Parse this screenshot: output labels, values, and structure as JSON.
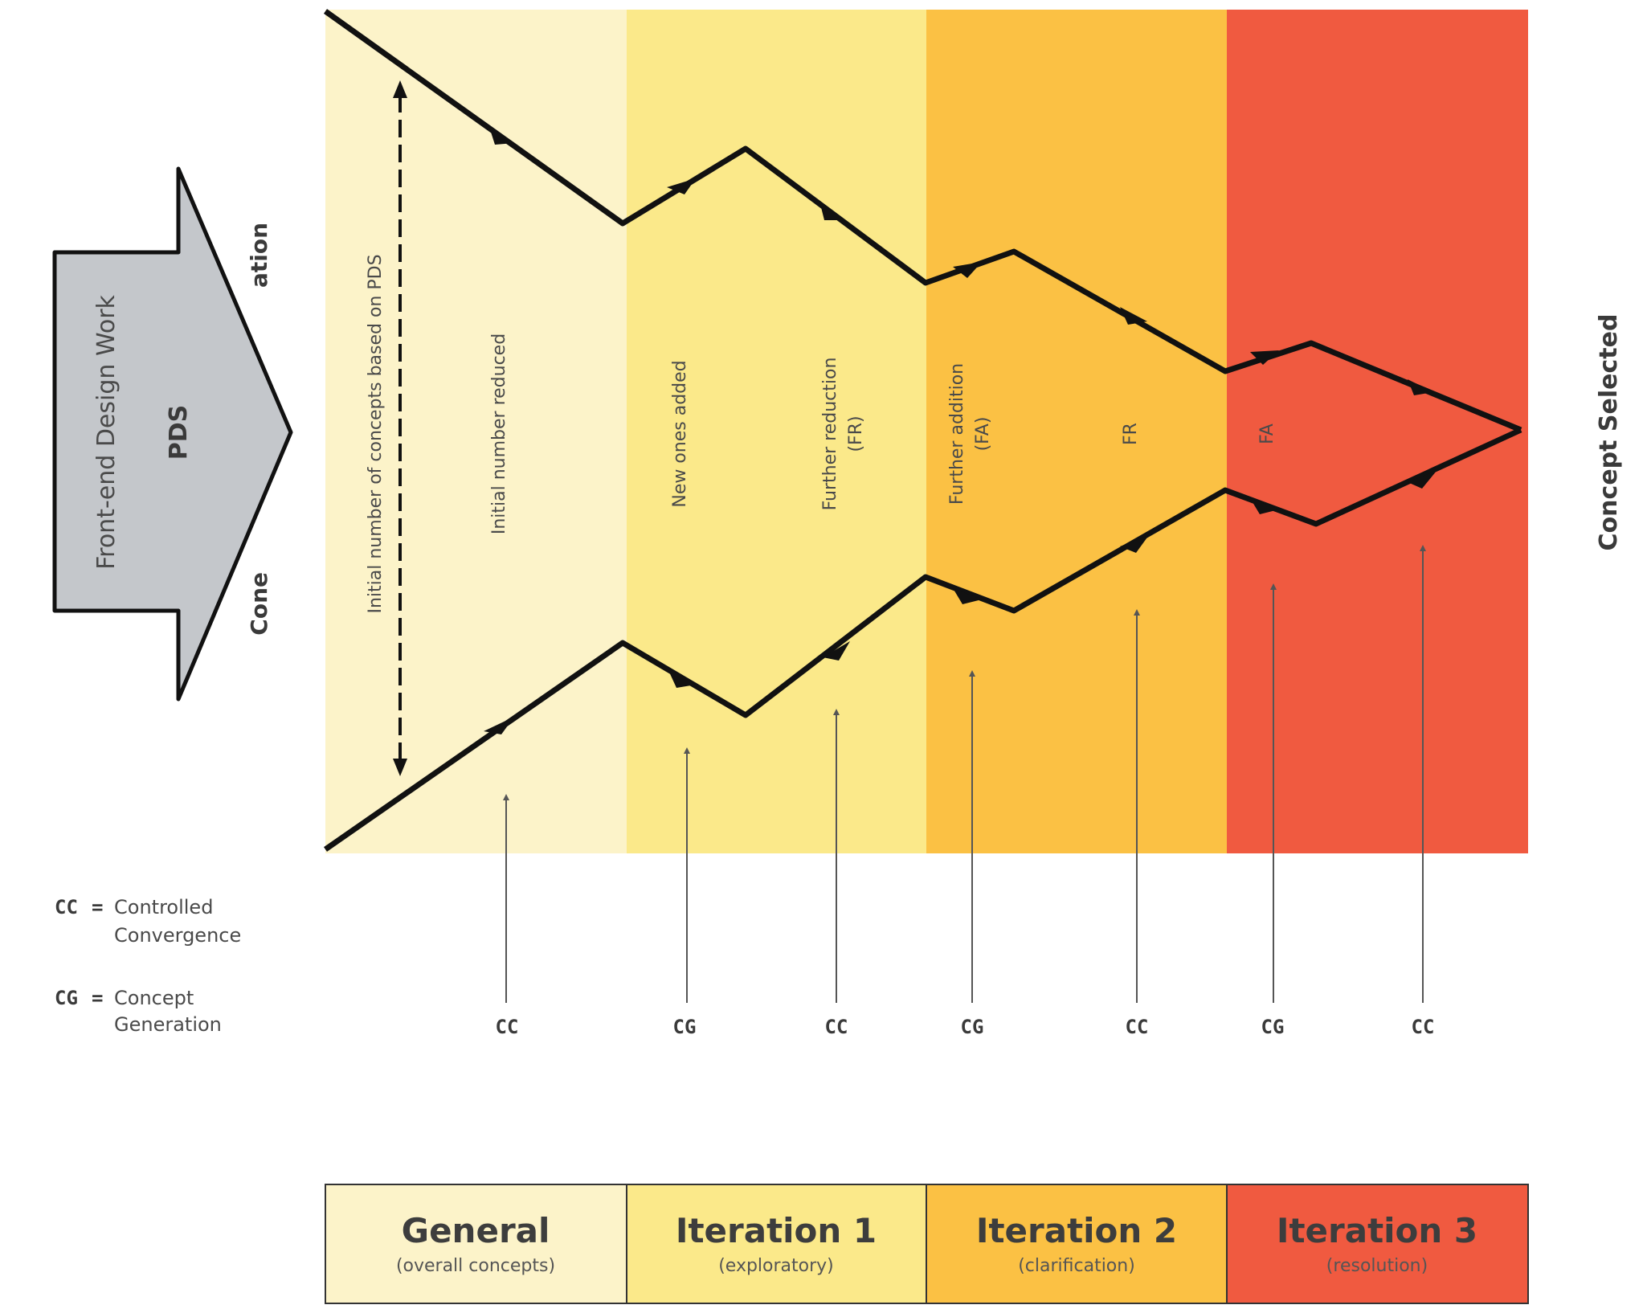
{
  "input_arrow": {
    "title": "Front-end Design Work",
    "subtitle": "PDS",
    "partial": "Cone",
    "partial_top": "ation"
  },
  "sections": [
    {
      "name": "General",
      "desc": "(overall concepts)",
      "color": "#fcf3c9"
    },
    {
      "name": "Iteration 1",
      "desc": "(exploratory)",
      "color": "#fbe98a"
    },
    {
      "name": "Iteration 2",
      "desc": "(clarification)",
      "color": "#fbc144"
    },
    {
      "name": "Iteration 3",
      "desc": "(resolution)",
      "color": "#f05a40"
    }
  ],
  "phase_labels": [
    {
      "text": "Initial number of concepts based on PDS",
      "sub": ""
    },
    {
      "text": "Initial number reduced",
      "sub": ""
    },
    {
      "text": "New ones added",
      "sub": ""
    },
    {
      "text": "Further reduction",
      "sub": "(FR)"
    },
    {
      "text": "Further addition",
      "sub": "(FA)"
    },
    {
      "text": "FR",
      "sub": ""
    },
    {
      "text": "FA",
      "sub": ""
    }
  ],
  "output_label": "Concept Selected",
  "markers": [
    "CC",
    "CG",
    "CC",
    "CG",
    "CC",
    "CG",
    "CC"
  ],
  "legend": [
    {
      "code": "CC",
      "eq": "=",
      "line1": "Controlled",
      "line2": "Convergence"
    },
    {
      "code": "CG",
      "eq": "=",
      "line1": "Concept",
      "line2": "Generation"
    }
  ],
  "colors": {
    "outline": "#111111",
    "arrow_fill": "#c4c7cb"
  }
}
